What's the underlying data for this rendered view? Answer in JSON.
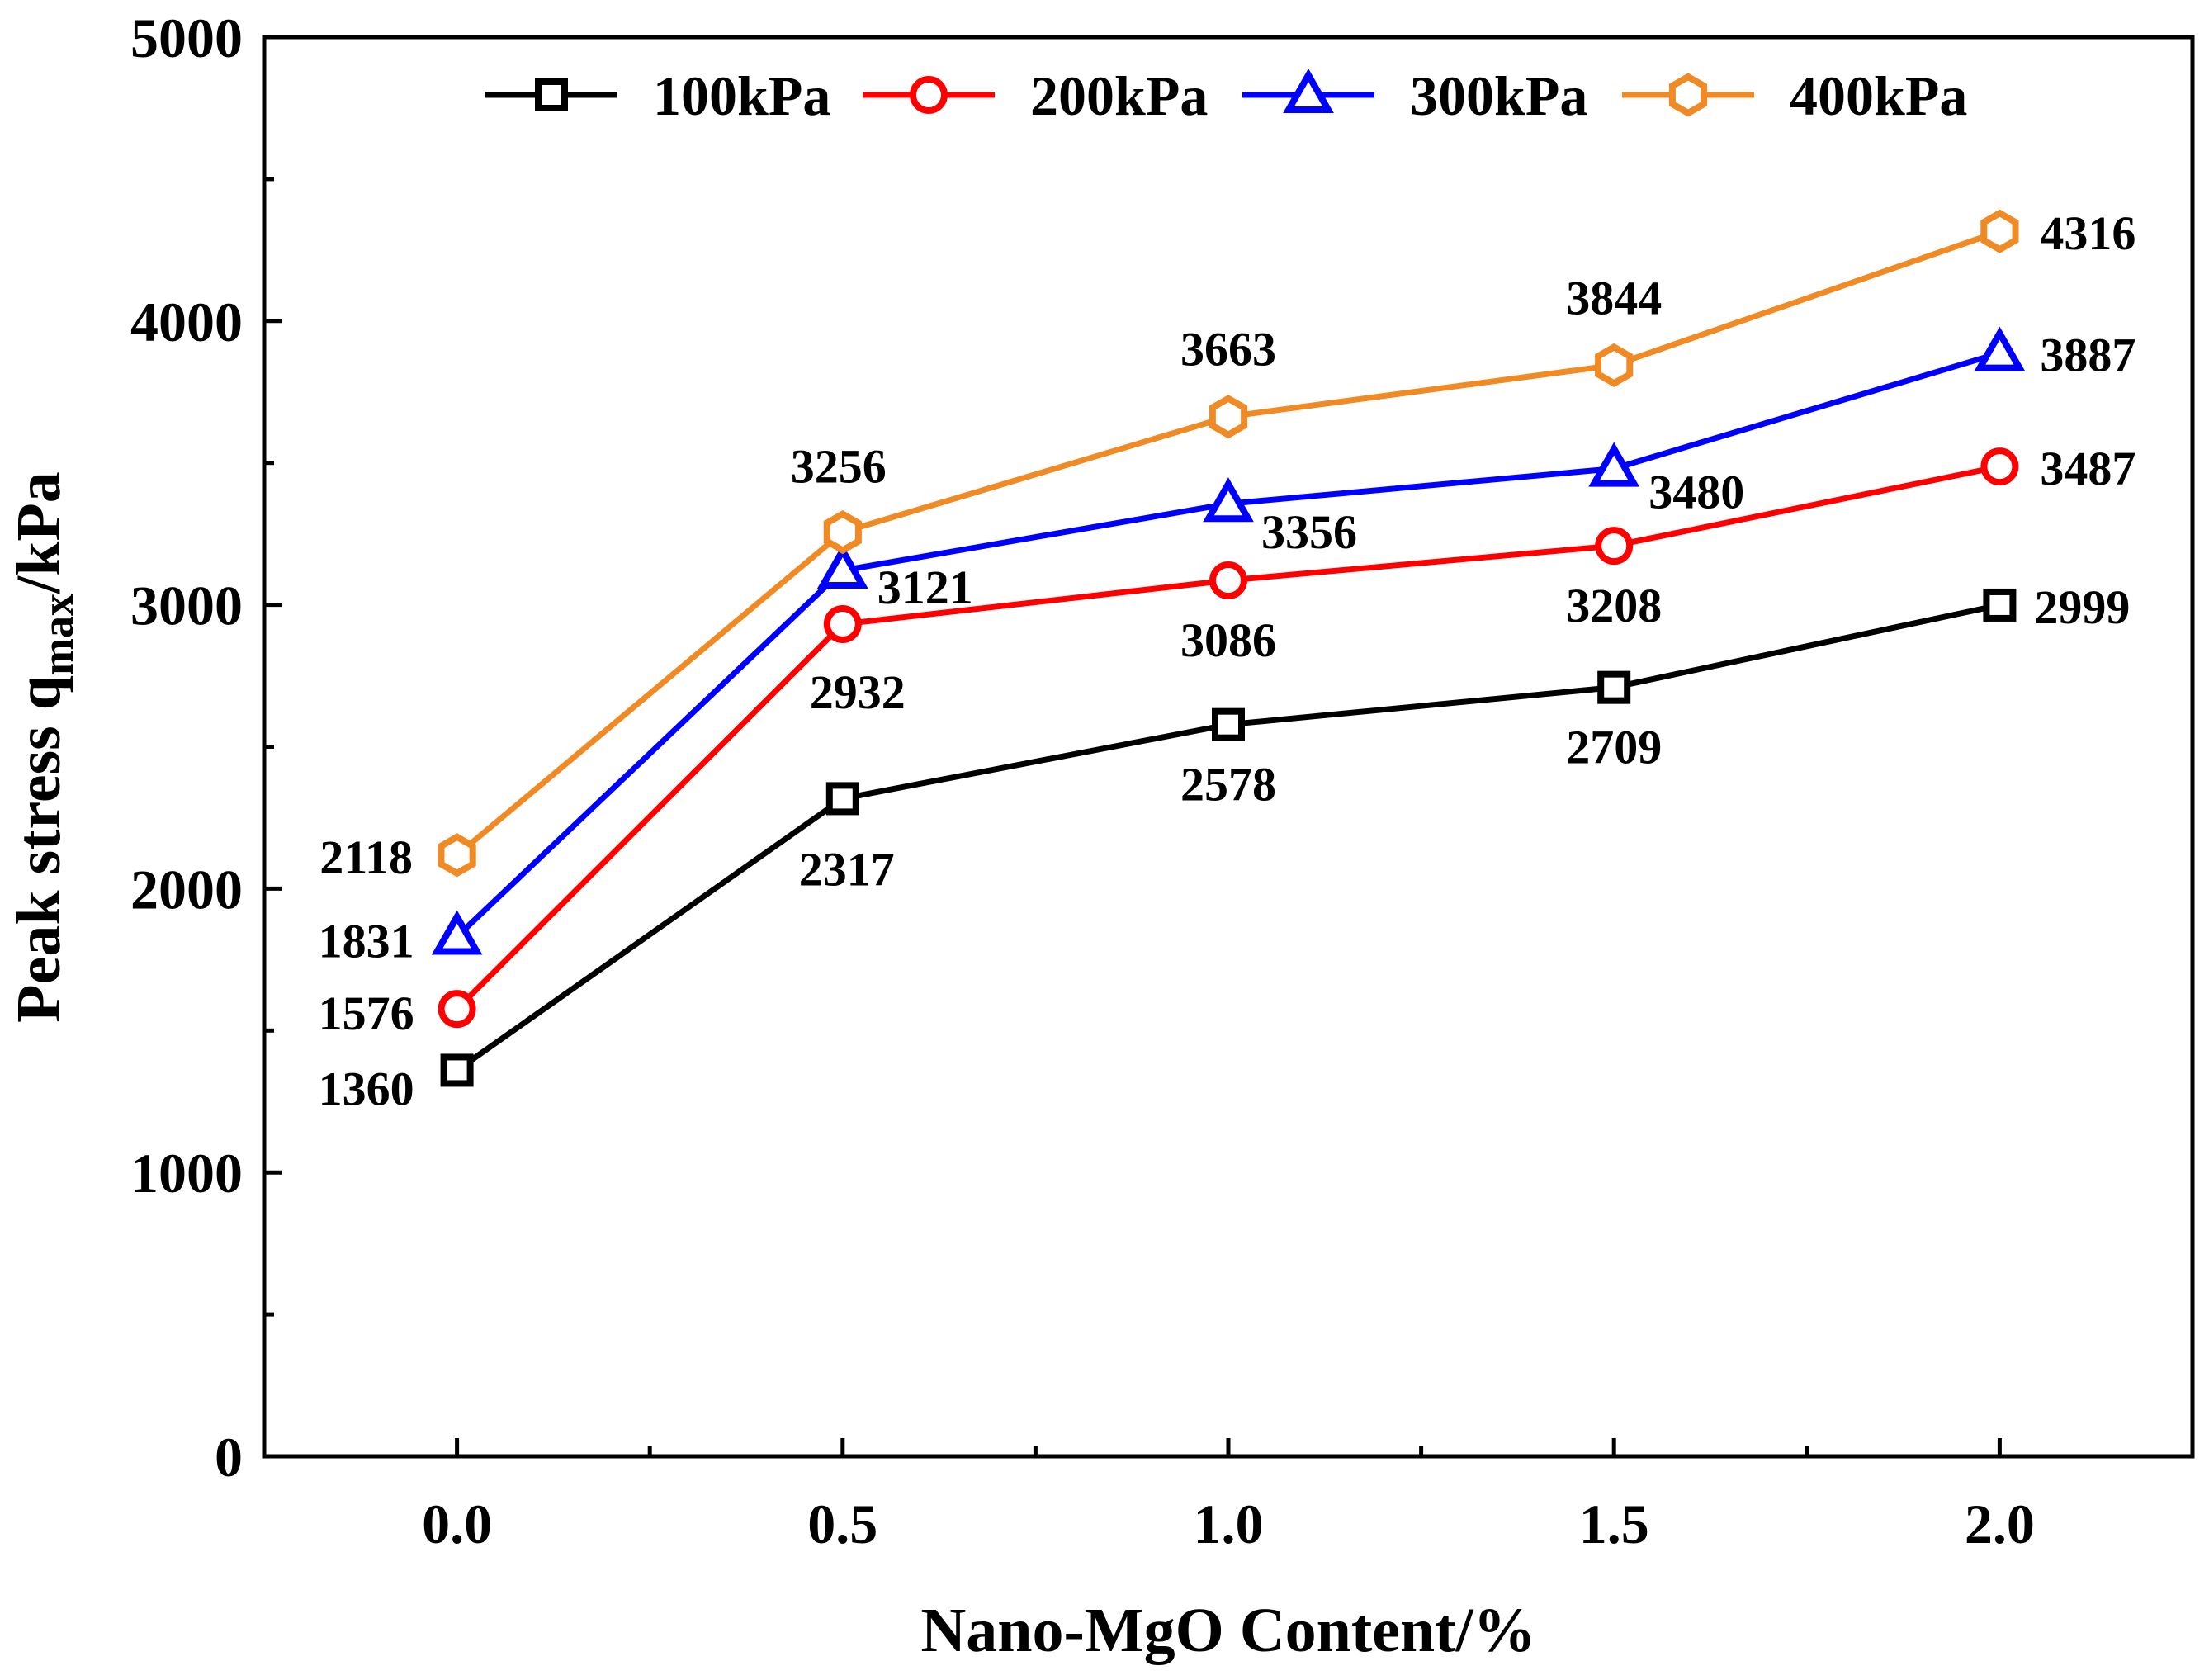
{
  "chart_data": {
    "type": "line",
    "title": "",
    "xlabel": "Nano-MgO Content/%",
    "ylabel": {
      "main": "Peak stress q",
      "subscript": "max",
      "suffix": "/kPa"
    },
    "x": [
      0.0,
      0.5,
      1.0,
      1.5,
      2.0
    ],
    "x_tick_labels": [
      "0.0",
      "0.5",
      "1.0",
      "1.5",
      "2.0"
    ],
    "y_ticks": [
      0,
      1000,
      2000,
      3000,
      4000,
      5000
    ],
    "y_tick_labels": [
      "0",
      "1000",
      "2000",
      "3000",
      "4000",
      "5000"
    ],
    "xlim": [
      -0.25,
      2.25
    ],
    "ylim": [
      0,
      5000
    ],
    "grid": false,
    "legend_position": "top",
    "series": [
      {
        "name": "100kPa",
        "color": "#000000",
        "marker": "square",
        "values": [
          1360,
          2317,
          2578,
          2709,
          2999
        ],
        "labels": [
          "1360",
          "2317",
          "2578",
          "2709",
          "2999"
        ]
      },
      {
        "name": "200kPa",
        "color": "#ff0000",
        "marker": "circle",
        "values": [
          1576,
          2932,
          3086,
          3208,
          3487
        ],
        "labels": [
          "1576",
          "2932",
          "3086",
          "3208",
          "3487"
        ]
      },
      {
        "name": "300kPa",
        "color": "#0000ff",
        "marker": "triangle",
        "values": [
          1831,
          3121,
          3356,
          3480,
          3887
        ],
        "labels": [
          "1831",
          "3121",
          "3356",
          "3480",
          "3887"
        ]
      },
      {
        "name": "400kPa",
        "color": "#f08a24",
        "marker": "hexagon",
        "values": [
          2118,
          3256,
          3663,
          3844,
          4316
        ],
        "labels": [
          "2118",
          "3256",
          "3663",
          "3844",
          "4316"
        ]
      }
    ]
  }
}
